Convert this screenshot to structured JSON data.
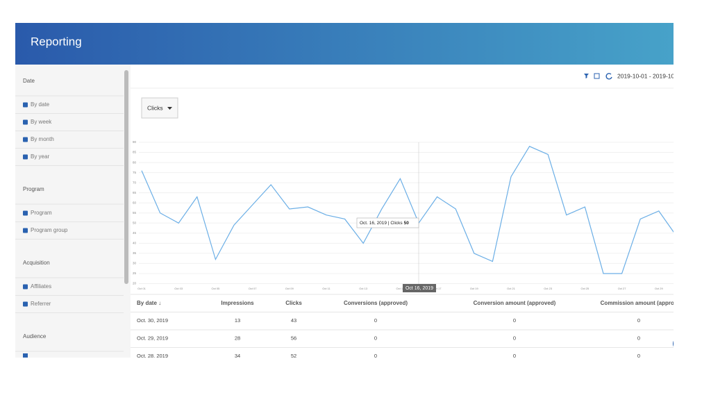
{
  "header": {
    "title": "Reporting"
  },
  "sidebar": [
    {
      "section": "Date",
      "items": [
        "By date",
        "By week",
        "By month",
        "By year"
      ]
    },
    {
      "section": "Program",
      "items": [
        "Program",
        "Program group"
      ]
    },
    {
      "section": "Acquisition",
      "items": [
        "Affiliates",
        "Referrer"
      ]
    },
    {
      "section": "Audience",
      "items": []
    }
  ],
  "toolbar": {
    "date_range": "2019-10-01 - 2019-10-3",
    "metric": "Clicks"
  },
  "chart_data": {
    "type": "line",
    "categories": [
      "Oct 01",
      null,
      "Oct 03",
      null,
      "Oct 05",
      null,
      "Oct 07",
      null,
      "Oct 09",
      null,
      "Oct 11",
      null,
      "Oct 13",
      null,
      "Oct 15",
      null,
      "Oct 17",
      null,
      "Oct 19",
      null,
      "Oct 21",
      null,
      "Oct 23",
      null,
      "Oct 25",
      null,
      "Oct 27",
      null,
      "Oct 29",
      null
    ],
    "series": [
      {
        "name": "Clicks",
        "color": "#6aaee6",
        "values": [
          76,
          55,
          50,
          63,
          32,
          49,
          59,
          69,
          57,
          58,
          54,
          52,
          40,
          57,
          72,
          50,
          63,
          57,
          35,
          31,
          73,
          88,
          84,
          54,
          58,
          25,
          25,
          52,
          56,
          43
        ]
      }
    ],
    "ylim": [
      20,
      90
    ],
    "yticks": [
      20,
      25,
      30,
      35,
      40,
      45,
      50,
      55,
      60,
      65,
      70,
      75,
      80,
      85,
      90
    ],
    "grid": true,
    "tooltip": {
      "index": 15,
      "label": "Oct. 16, 2019 | Clicks",
      "value": 50,
      "axis_label": "Oct 16, 2019"
    }
  },
  "table": {
    "columns": [
      "By date ↓",
      "Impressions",
      "Clicks",
      "Conversions (approved)",
      "Conversion amount (approved)",
      "Commission amount (approv"
    ],
    "rows": [
      [
        "Oct. 30, 2019",
        13,
        43,
        0,
        0,
        0
      ],
      [
        "Oct. 29, 2019",
        28,
        56,
        0,
        0,
        0
      ],
      [
        "Oct. 28, 2019",
        34,
        52,
        0,
        0,
        0
      ]
    ]
  }
}
